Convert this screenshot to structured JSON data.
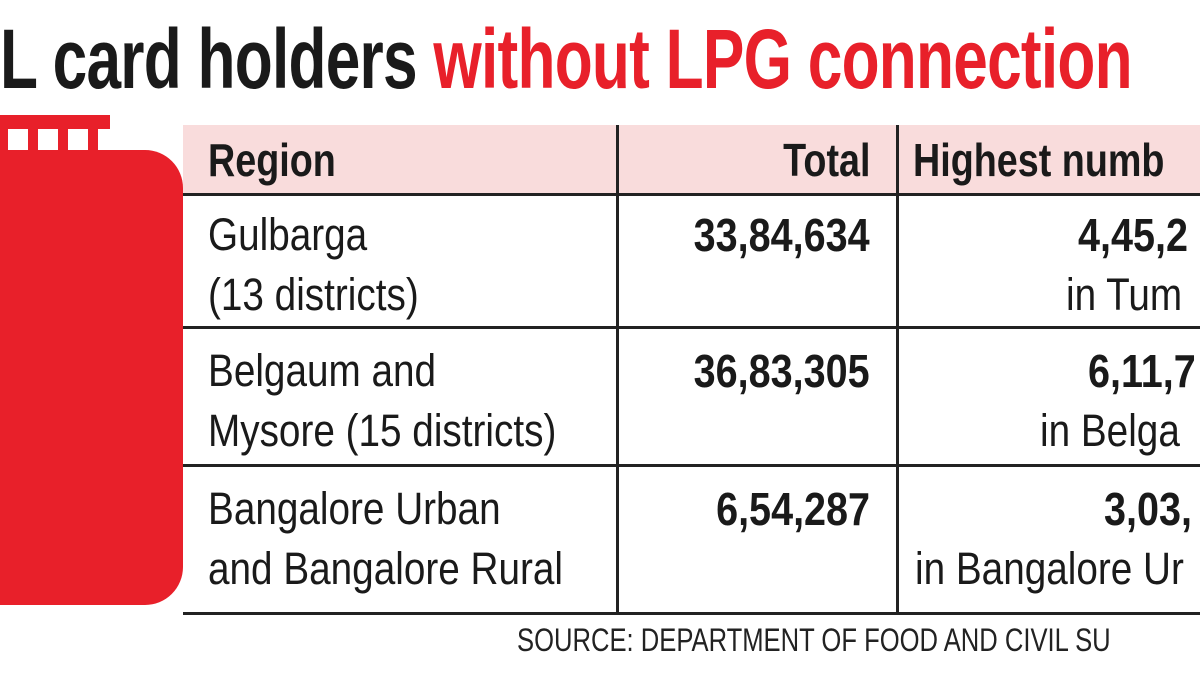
{
  "title": {
    "black": "L card holders ",
    "red": "without LPG connection"
  },
  "colors": {
    "accent": "#e8202a",
    "header_bg": "#f9dcdc"
  },
  "illustration": "lpg-cylinder-icon",
  "table": {
    "headers": [
      "Region",
      "Total",
      "Highest numb"
    ],
    "rows": [
      {
        "region": [
          "Gulbarga",
          "(13 districts)"
        ],
        "total": "33,84,634",
        "highest": "4,45,2",
        "highest_place": "in Tum"
      },
      {
        "region": [
          "Belgaum and",
          "Mysore (15 districts)"
        ],
        "total": "36,83,305",
        "highest": "6,11,7",
        "highest_place": "in Belga"
      },
      {
        "region": [
          "Bangalore Urban",
          "and Bangalore Rural"
        ],
        "total": "6,54,287",
        "highest": "3,03,",
        "highest_place": "in Bangalore Ur"
      }
    ]
  },
  "source": "SOURCE: DEPARTMENT OF FOOD AND CIVIL SU"
}
